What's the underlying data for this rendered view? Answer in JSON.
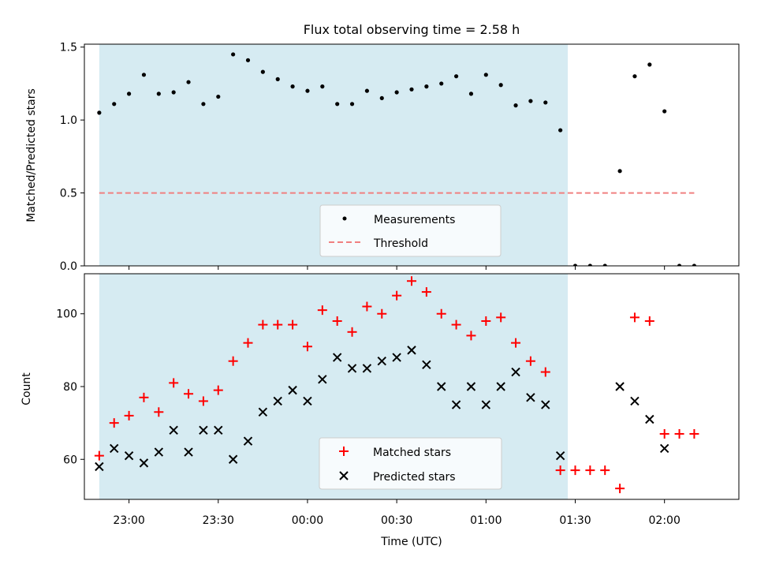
{
  "chart_data": [
    {
      "type": "scatter",
      "title": "Flux total observing time = 2.58 h",
      "xlabel": "",
      "ylabel": "Matched/Predicted stars",
      "ylim": [
        0,
        1.52
      ],
      "yticks": [
        0.0,
        0.5,
        1.0,
        1.5
      ],
      "ytick_labels": [
        "0.0",
        "0.5",
        "1.0",
        "1.5"
      ],
      "x_range": [
        "22:45",
        "02:25"
      ],
      "shaded_interval": [
        "22:50",
        "01:27.5"
      ],
      "shade_color": "#add8e6",
      "legend_position": "lower-center",
      "series": [
        {
          "name": "Measurements",
          "marker": "dot",
          "color": "#000000",
          "x": [
            "22:50",
            "22:55",
            "23:00",
            "23:05",
            "23:10",
            "23:15",
            "23:20",
            "23:25",
            "23:30",
            "23:35",
            "23:40",
            "23:45",
            "23:50",
            "23:55",
            "00:00",
            "00:05",
            "00:10",
            "00:15",
            "00:20",
            "00:25",
            "00:30",
            "00:35",
            "00:40",
            "00:45",
            "00:50",
            "00:55",
            "01:00",
            "01:05",
            "01:10",
            "01:15",
            "01:20",
            "01:25",
            "01:30",
            "01:35",
            "01:40",
            "01:45",
            "01:50",
            "01:55",
            "02:00",
            "02:05",
            "02:10"
          ],
          "y": [
            1.05,
            1.11,
            1.18,
            1.31,
            1.18,
            1.19,
            1.26,
            1.11,
            1.16,
            1.45,
            1.41,
            1.33,
            1.28,
            1.23,
            1.2,
            1.23,
            1.11,
            1.11,
            1.2,
            1.15,
            1.19,
            1.21,
            1.23,
            1.25,
            1.3,
            1.18,
            1.31,
            1.24,
            1.1,
            1.13,
            1.12,
            0.93,
            0.0,
            0.0,
            0.0,
            0.65,
            1.3,
            1.38,
            1.06,
            0.0,
            0.0
          ]
        },
        {
          "name": "Threshold",
          "marker": "dashed-line",
          "color": "#f08080",
          "x": [
            "22:50",
            "02:10"
          ],
          "y": [
            0.5,
            0.5
          ]
        }
      ]
    },
    {
      "type": "scatter",
      "title": "",
      "xlabel": "Time (UTC)",
      "ylabel": "Count",
      "ylim": [
        49,
        111
      ],
      "yticks": [
        60,
        80,
        100
      ],
      "ytick_labels": [
        "60",
        "80",
        "100"
      ],
      "x_range": [
        "22:45",
        "02:25"
      ],
      "xticks": [
        "23:00",
        "23:30",
        "00:00",
        "00:30",
        "01:00",
        "01:30",
        "02:00"
      ],
      "xtick_labels": [
        "23:00",
        "23:30",
        "00:00",
        "00:30",
        "01:00",
        "01:30",
        "02:00"
      ],
      "shaded_interval": [
        "22:50",
        "01:27.5"
      ],
      "shade_color": "#add8e6",
      "legend_position": "lower-center",
      "series": [
        {
          "name": "Matched stars",
          "marker": "plus",
          "color": "#ff0000",
          "x": [
            "22:50",
            "22:55",
            "23:00",
            "23:05",
            "23:10",
            "23:15",
            "23:20",
            "23:25",
            "23:30",
            "23:35",
            "23:40",
            "23:45",
            "23:50",
            "23:55",
            "00:00",
            "00:05",
            "00:10",
            "00:15",
            "00:20",
            "00:25",
            "00:30",
            "00:35",
            "00:40",
            "00:45",
            "00:50",
            "00:55",
            "01:00",
            "01:05",
            "01:10",
            "01:15",
            "01:20",
            "01:25",
            "01:30",
            "01:35",
            "01:40",
            "01:45",
            "01:50",
            "01:55",
            "02:00",
            "02:05",
            "02:10"
          ],
          "y": [
            61,
            70,
            72,
            77,
            73,
            81,
            78,
            76,
            79,
            87,
            92,
            97,
            97,
            97,
            91,
            101,
            98,
            95,
            102,
            100,
            105,
            109,
            106,
            100,
            97,
            94,
            98,
            99,
            92,
            87,
            84,
            57,
            57,
            57,
            57,
            52,
            99,
            98,
            67,
            67,
            67
          ]
        },
        {
          "name": "Predicted stars",
          "marker": "x",
          "color": "#000000",
          "x": [
            "22:50",
            "22:55",
            "23:00",
            "23:05",
            "23:10",
            "23:15",
            "23:20",
            "23:25",
            "23:30",
            "23:35",
            "23:40",
            "23:45",
            "23:50",
            "23:55",
            "00:00",
            "00:05",
            "00:10",
            "00:15",
            "00:20",
            "00:25",
            "00:30",
            "00:35",
            "00:40",
            "00:45",
            "00:50",
            "00:55",
            "01:00",
            "01:05",
            "01:10",
            "01:15",
            "01:20",
            "01:25",
            "01:45",
            "01:50",
            "01:55",
            "02:00"
          ],
          "y": [
            58,
            63,
            61,
            59,
            62,
            68,
            62,
            68,
            68,
            60,
            65,
            73,
            76,
            79,
            76,
            82,
            88,
            85,
            85,
            87,
            88,
            90,
            86,
            80,
            75,
            80,
            75,
            80,
            84,
            77,
            75,
            61,
            80,
            76,
            71,
            63
          ]
        }
      ]
    }
  ]
}
